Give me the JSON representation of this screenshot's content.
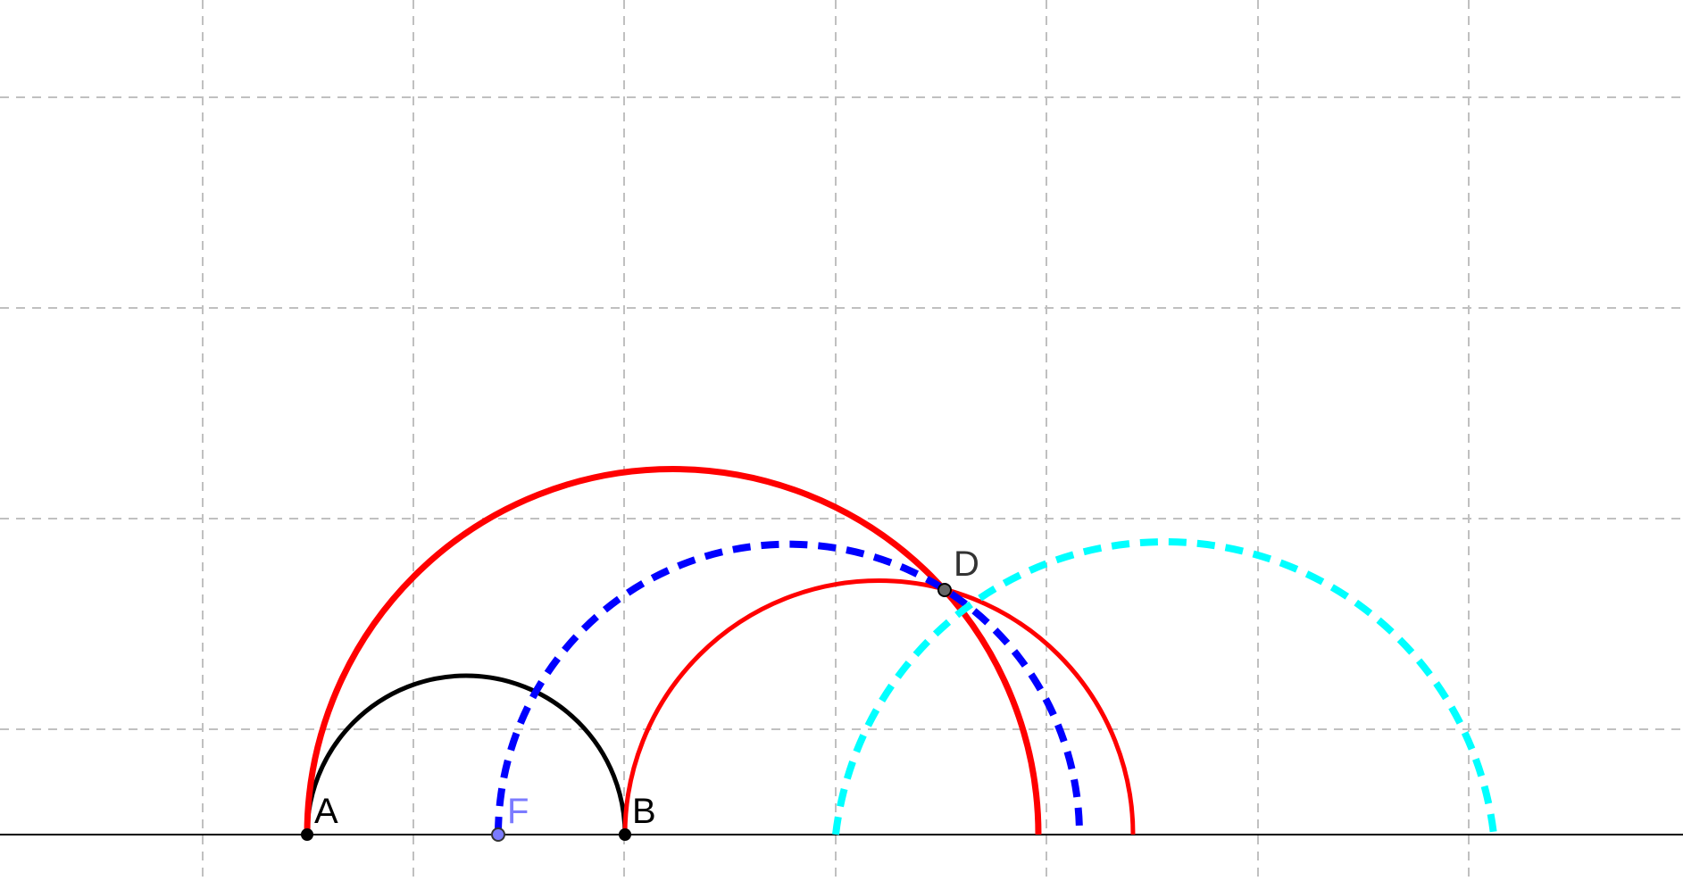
{
  "points": {
    "A": {
      "label": "A",
      "color": "#000000",
      "fill": "#000000"
    },
    "B": {
      "label": "B",
      "color": "#000000",
      "fill": "#000000"
    },
    "F": {
      "label": "F",
      "color": "#7b7bff",
      "fill": "#7b7bff"
    },
    "D": {
      "label": "D",
      "color": "#333333",
      "fill": "#666666"
    }
  },
  "colors": {
    "grid": "#c0c0c0",
    "axis": "#000000",
    "semicircle_ab": "#000000",
    "red": "#ff0000",
    "blue": "#0000ff",
    "cyan": "#00ffff"
  }
}
